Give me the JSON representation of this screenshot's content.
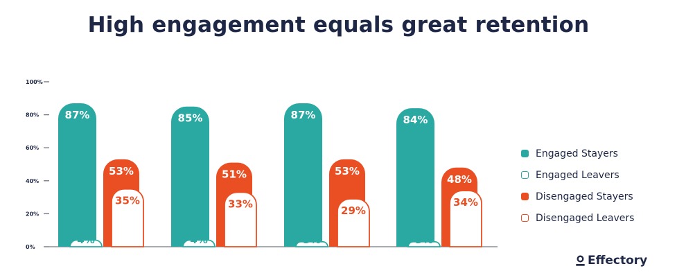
{
  "brand": "Effectory",
  "colors": {
    "engaged": "#2aa9a3",
    "disengaged": "#e94f23",
    "text": "#1e2746",
    "axis": "#6b7380"
  },
  "chart_data": {
    "type": "bar",
    "title": "High engagement equals great retention",
    "ylim": [
      0,
      100
    ],
    "yticks": [
      0,
      20,
      40,
      60,
      80,
      100
    ],
    "ytick_labels": [
      "0%",
      "20%",
      "40%",
      "60%",
      "80%",
      "100%"
    ],
    "categories": [
      "",
      "",
      "",
      ""
    ],
    "legend_position": "right",
    "series": [
      {
        "name": "Engaged Stayers",
        "values": [
          87,
          85,
          87,
          84
        ],
        "labels": [
          "87%",
          "85%",
          "87%",
          "84%"
        ],
        "color": "#2aa9a3",
        "fill": "solid"
      },
      {
        "name": "Engaged Leavers",
        "values": [
          4,
          4,
          3,
          3
        ],
        "labels": [
          "4%",
          "4%",
          "3%",
          "3%"
        ],
        "color": "#2aa9a3",
        "fill": "outline"
      },
      {
        "name": "Disengaged Stayers",
        "values": [
          53,
          51,
          53,
          48
        ],
        "labels": [
          "53%",
          "51%",
          "53%",
          "48%"
        ],
        "color": "#e94f23",
        "fill": "solid"
      },
      {
        "name": "Disengaged Leavers",
        "values": [
          35,
          33,
          29,
          34
        ],
        "labels": [
          "35%",
          "33%",
          "29%",
          "34%"
        ],
        "color": "#e94f23",
        "fill": "outline"
      }
    ]
  }
}
